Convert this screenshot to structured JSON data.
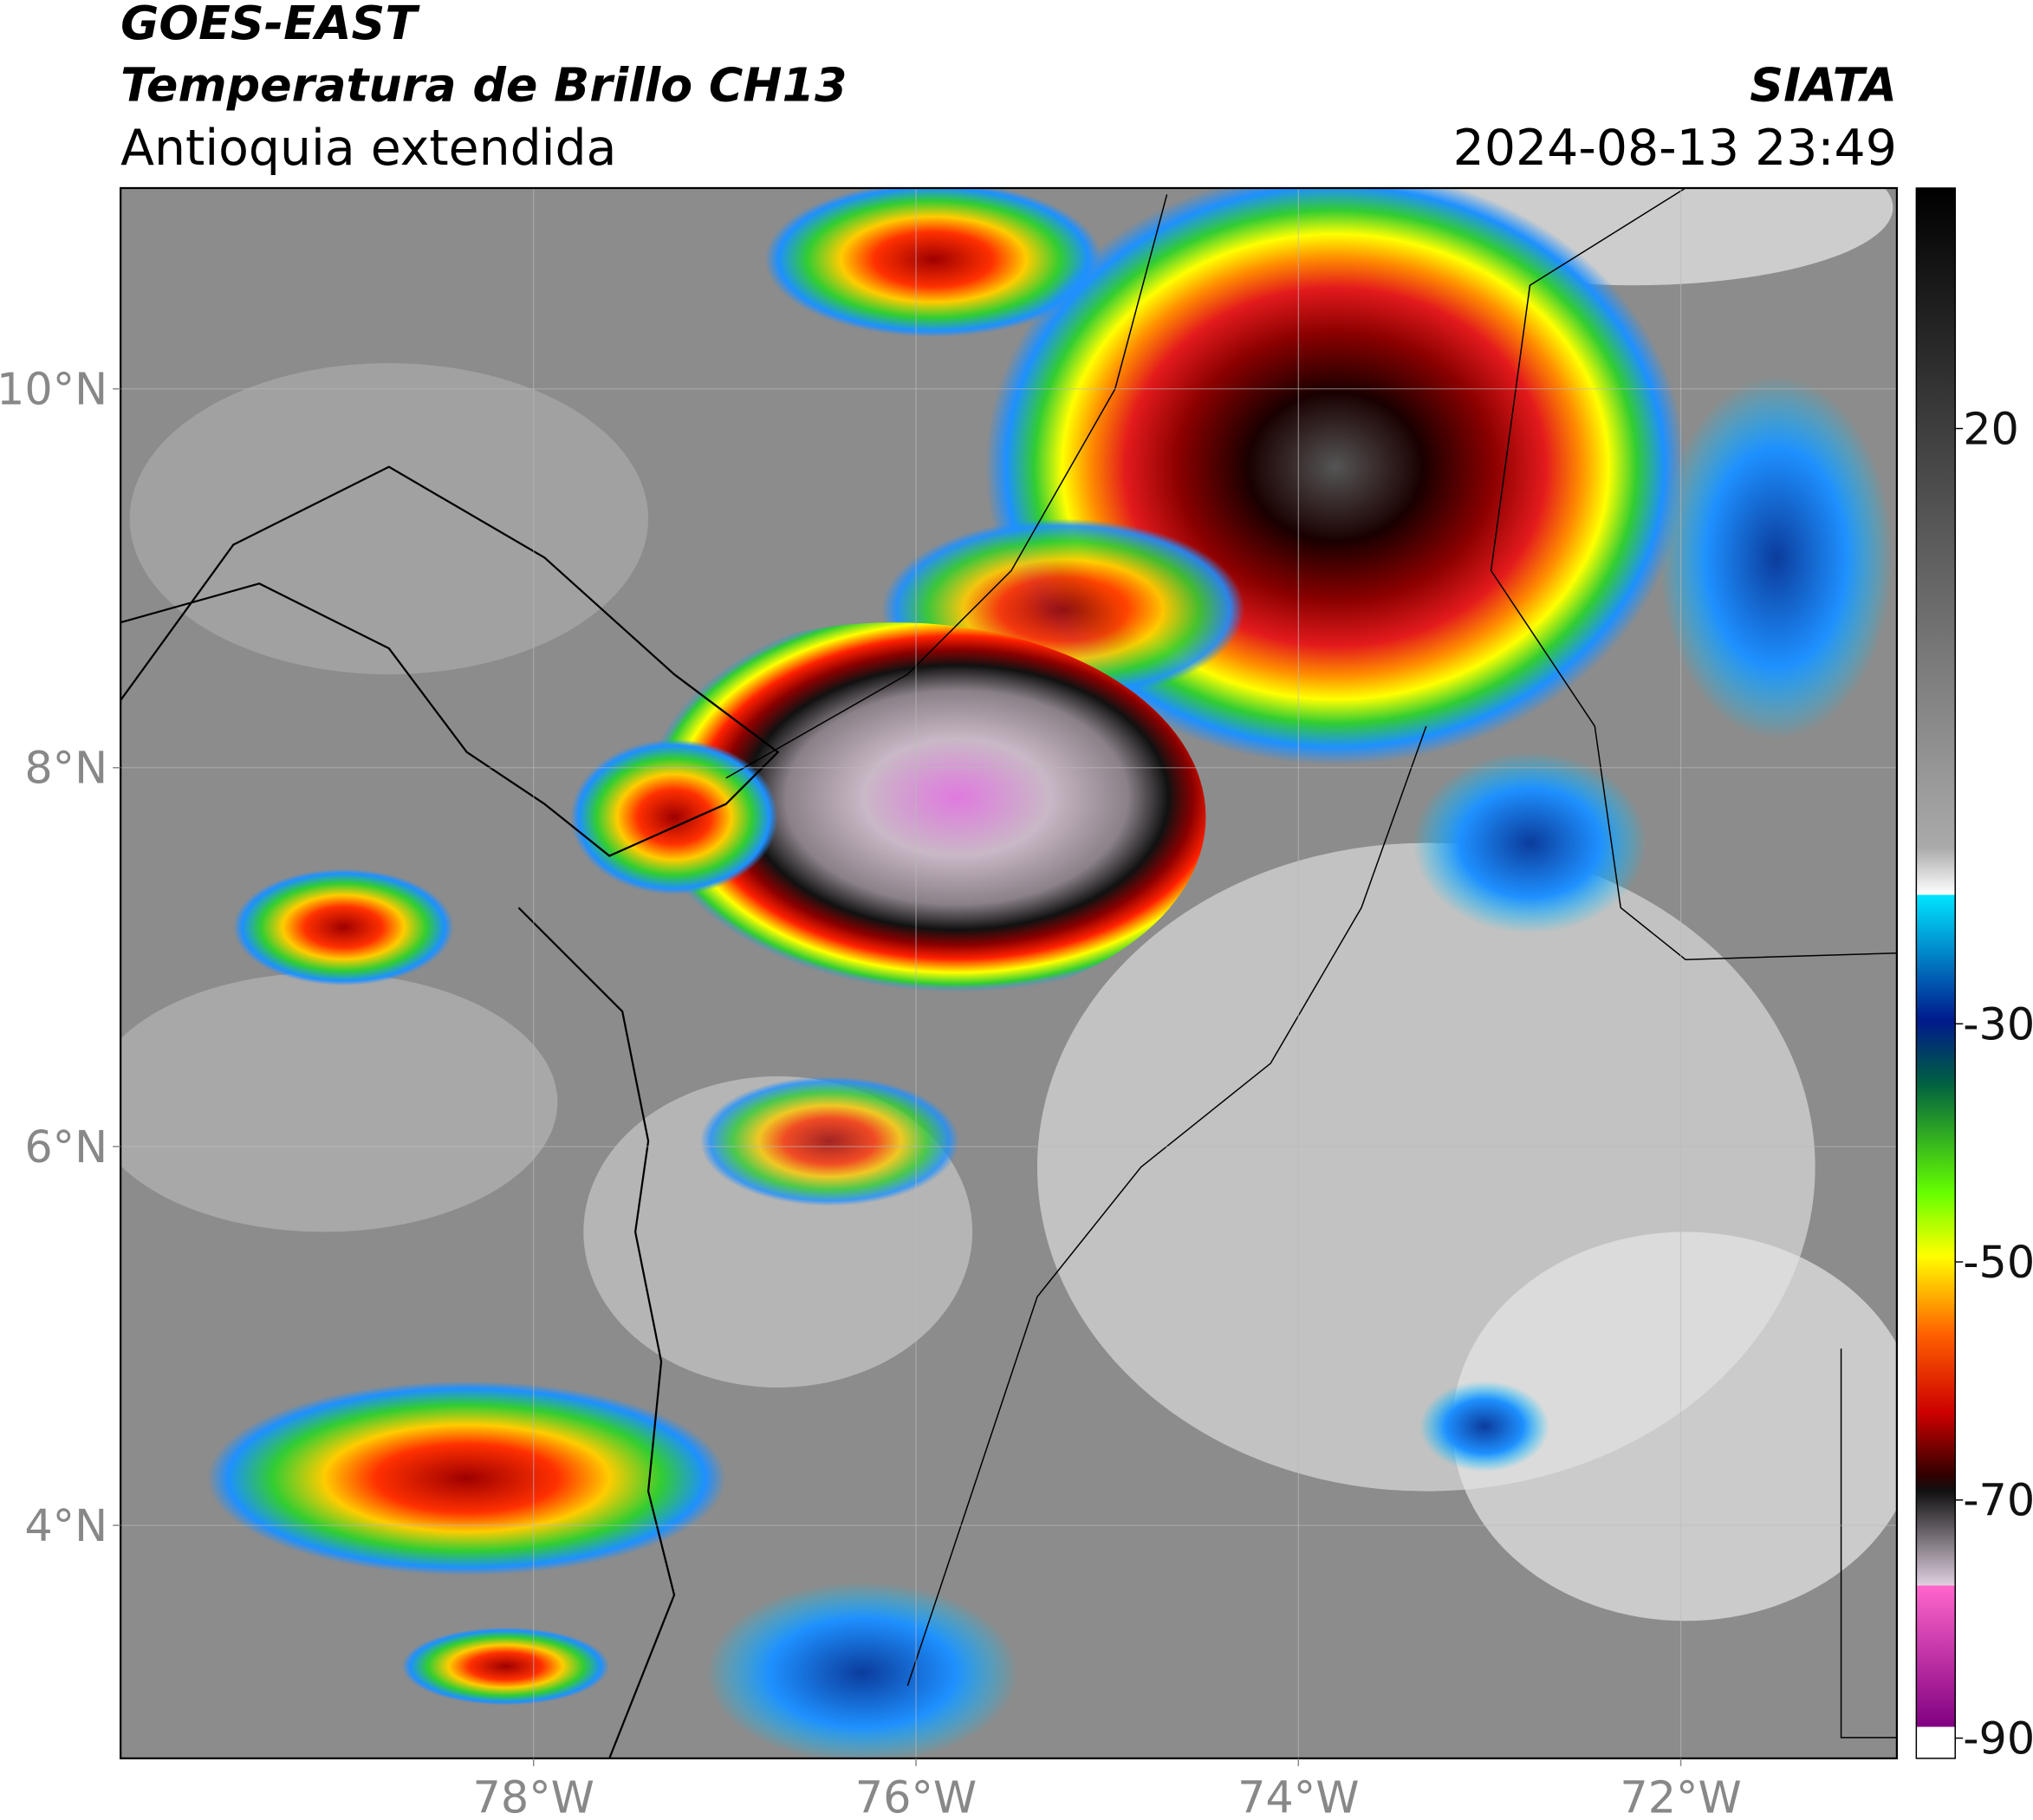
{
  "header": {
    "title": "GOES-EAST",
    "subtitle": "Temperatura de Brillo CH13",
    "region": "Antioquia extendida",
    "source": "SIATA",
    "datetime": "2024-08-13 23:49"
  },
  "map": {
    "lon_range": [
      -80.16,
      -70.87
    ],
    "lat_range": [
      2.77,
      11.06
    ],
    "lon_ticks": [
      {
        "value": -78,
        "label": "78°W"
      },
      {
        "value": -76,
        "label": "76°W"
      },
      {
        "value": -74,
        "label": "74°W"
      },
      {
        "value": -72,
        "label": "72°W"
      }
    ],
    "lat_ticks": [
      {
        "value": 4,
        "label": "4°N"
      },
      {
        "value": 6,
        "label": "6°N"
      },
      {
        "value": 8,
        "label": "8°N"
      },
      {
        "value": 10,
        "label": "10°N"
      }
    ],
    "grid": true
  },
  "colorbar": {
    "range": [
      -91.7,
      40.2
    ],
    "ticks": [
      20,
      -30,
      -50,
      -70,
      -90
    ]
  }
}
